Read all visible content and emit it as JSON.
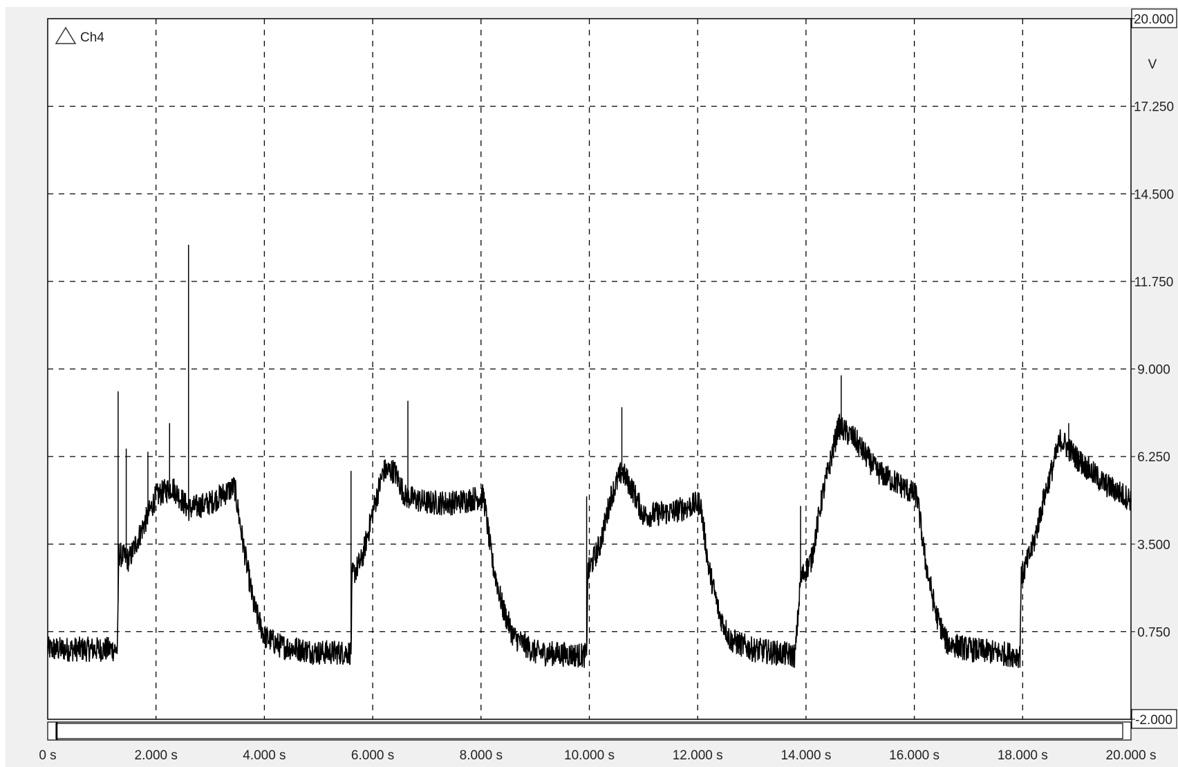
{
  "chart_data": {
    "type": "line",
    "channel": "Ch4",
    "ylabel": "V",
    "ylim": [
      -2.0,
      20.0
    ],
    "xlim": [
      0,
      20.0
    ],
    "yticks": [
      "20.000",
      "17.250",
      "14.500",
      "11.750",
      "9.000",
      "6.250",
      "3.500",
      "0.750",
      "-2.000"
    ],
    "ytick_values": [
      20.0,
      17.25,
      14.5,
      11.75,
      9.0,
      6.25,
      3.5,
      0.75,
      -2.0
    ],
    "xticks": [
      "0 s",
      "2.000 s",
      "4.000 s",
      "6.000 s",
      "8.000 s",
      "10.000 s",
      "12.000 s",
      "14.000 s",
      "16.000 s",
      "18.000 s",
      "20.000 s"
    ],
    "xtick_values": [
      0,
      2,
      4,
      6,
      8,
      10,
      12,
      14,
      16,
      18,
      20
    ],
    "grid": true,
    "series": [
      {
        "color": "#000000",
        "noise_band": 0.8,
        "points": [
          [
            0.0,
            0.2
          ],
          [
            1.29,
            0.2
          ],
          [
            1.31,
            3.2
          ],
          [
            1.5,
            3.0
          ],
          [
            1.75,
            4.0
          ],
          [
            2.0,
            5.0
          ],
          [
            2.3,
            5.3
          ],
          [
            2.6,
            4.6
          ],
          [
            3.0,
            4.8
          ],
          [
            3.45,
            5.3
          ],
          [
            3.6,
            3.6
          ],
          [
            3.8,
            1.6
          ],
          [
            4.0,
            0.6
          ],
          [
            4.3,
            0.3
          ],
          [
            5.0,
            0.1
          ],
          [
            5.6,
            0.1
          ],
          [
            5.62,
            2.5
          ],
          [
            5.8,
            3.0
          ],
          [
            6.0,
            4.5
          ],
          [
            6.2,
            5.8
          ],
          [
            6.4,
            5.8
          ],
          [
            6.6,
            5.0
          ],
          [
            7.0,
            4.8
          ],
          [
            7.5,
            4.8
          ],
          [
            8.05,
            5.0
          ],
          [
            8.2,
            3.0
          ],
          [
            8.4,
            1.5
          ],
          [
            8.6,
            0.6
          ],
          [
            9.0,
            0.1
          ],
          [
            9.95,
            0.0
          ],
          [
            9.97,
            2.6
          ],
          [
            10.2,
            3.5
          ],
          [
            10.4,
            5.0
          ],
          [
            10.6,
            5.8
          ],
          [
            10.8,
            5.2
          ],
          [
            11.0,
            4.4
          ],
          [
            11.5,
            4.5
          ],
          [
            12.05,
            4.8
          ],
          [
            12.2,
            2.8
          ],
          [
            12.4,
            1.3
          ],
          [
            12.6,
            0.5
          ],
          [
            13.0,
            0.2
          ],
          [
            13.8,
            0.0
          ],
          [
            13.9,
            2.4
          ],
          [
            14.1,
            3.0
          ],
          [
            14.3,
            5.0
          ],
          [
            14.6,
            7.2
          ],
          [
            14.9,
            6.8
          ],
          [
            15.3,
            5.8
          ],
          [
            15.7,
            5.4
          ],
          [
            16.05,
            5.0
          ],
          [
            16.2,
            3.0
          ],
          [
            16.4,
            1.3
          ],
          [
            16.6,
            0.4
          ],
          [
            17.0,
            0.2
          ],
          [
            17.95,
            0.0
          ],
          [
            17.97,
            2.4
          ],
          [
            18.2,
            3.5
          ],
          [
            18.4,
            5.0
          ],
          [
            18.7,
            6.8
          ],
          [
            19.0,
            6.2
          ],
          [
            19.5,
            5.4
          ],
          [
            20.0,
            4.9
          ]
        ],
        "spikes": [
          [
            1.3,
            8.3
          ],
          [
            1.45,
            6.5
          ],
          [
            1.85,
            6.4
          ],
          [
            2.25,
            7.3
          ],
          [
            2.6,
            12.9
          ],
          [
            5.6,
            5.8
          ],
          [
            6.65,
            8.0
          ],
          [
            9.95,
            5.0
          ],
          [
            10.6,
            7.8
          ],
          [
            13.9,
            4.7
          ],
          [
            14.65,
            8.8
          ],
          [
            18.85,
            7.3
          ]
        ]
      }
    ]
  }
}
